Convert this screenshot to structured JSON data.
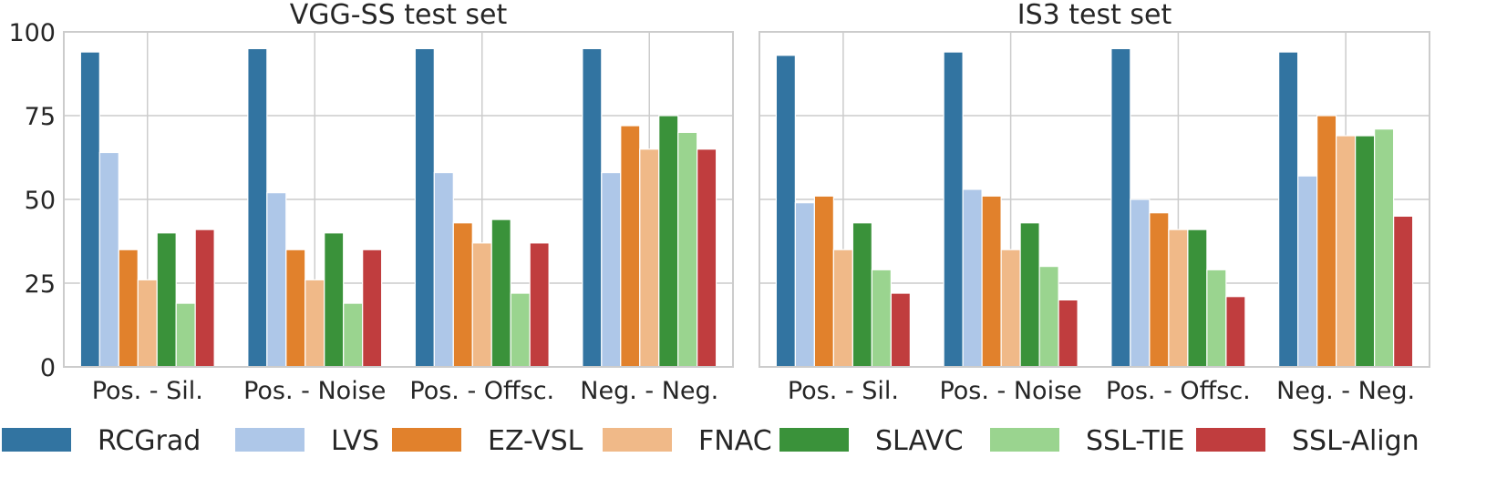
{
  "chart_data": [
    {
      "type": "bar",
      "title": "VGG-SS test set",
      "xlabel": "",
      "ylabel": "",
      "ylim": [
        0,
        100
      ],
      "yticks": [
        0,
        25,
        50,
        75,
        100
      ],
      "grid": true,
      "categories": [
        "Pos. - Sil.",
        "Pos. - Noise",
        "Pos. - Offsc.",
        "Neg. - Neg."
      ],
      "series": [
        {
          "name": "RCGrad",
          "values": [
            94,
            95,
            95,
            95
          ]
        },
        {
          "name": "LVS",
          "values": [
            64,
            52,
            58,
            58
          ]
        },
        {
          "name": "EZ-VSL",
          "values": [
            35,
            35,
            43,
            72
          ]
        },
        {
          "name": "FNAC",
          "values": [
            26,
            26,
            37,
            65
          ]
        },
        {
          "name": "SLAVC",
          "values": [
            40,
            40,
            44,
            75
          ]
        },
        {
          "name": "SSL-TIE",
          "values": [
            19,
            19,
            22,
            70
          ]
        },
        {
          "name": "SSL-Align",
          "values": [
            41,
            35,
            37,
            65
          ]
        }
      ]
    },
    {
      "type": "bar",
      "title": "IS3 test set",
      "xlabel": "",
      "ylabel": "",
      "ylim": [
        0,
        100
      ],
      "yticks": [
        0,
        25,
        50,
        75,
        100
      ],
      "grid": true,
      "categories": [
        "Pos. - Sil.",
        "Pos. - Noise",
        "Pos. - Offsc.",
        "Neg. - Neg."
      ],
      "series": [
        {
          "name": "RCGrad",
          "values": [
            93,
            94,
            95,
            94
          ]
        },
        {
          "name": "LVS",
          "values": [
            49,
            53,
            50,
            57
          ]
        },
        {
          "name": "EZ-VSL",
          "values": [
            51,
            51,
            46,
            75
          ]
        },
        {
          "name": "FNAC",
          "values": [
            35,
            35,
            41,
            69
          ]
        },
        {
          "name": "SLAVC",
          "values": [
            43,
            43,
            41,
            69
          ]
        },
        {
          "name": "SSL-TIE",
          "values": [
            29,
            30,
            29,
            71
          ]
        },
        {
          "name": "SSL-Align",
          "values": [
            22,
            20,
            21,
            45
          ]
        }
      ]
    }
  ],
  "legend": {
    "placement": "bottom",
    "items": [
      {
        "label": "RCGrad",
        "color": "#3274a1"
      },
      {
        "label": "LVS",
        "color": "#aec7e8"
      },
      {
        "label": "EZ-VSL",
        "color": "#e1812c"
      },
      {
        "label": "FNAC",
        "color": "#f0b988"
      },
      {
        "label": "SLAVC",
        "color": "#3a923a"
      },
      {
        "label": "SSL-TIE",
        "color": "#9ad48f"
      },
      {
        "label": "SSL-Align",
        "color": "#c03d3e"
      }
    ]
  }
}
